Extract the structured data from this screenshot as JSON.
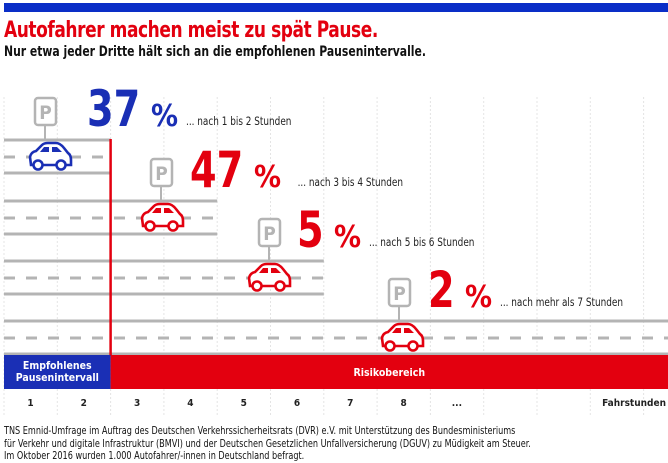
{
  "header": {
    "title": "Autofahrer machen meist zu spät Pause.",
    "subtitle": "Nur etwa jeder Dritte hält sich an die empfohlenen Pausenintervalle."
  },
  "colors": {
    "blue": "#1a2fb5",
    "red": "#e3000f",
    "gray": "#b4b4b4"
  },
  "icons": {
    "parking": "parking-sign-icon",
    "car": "car-icon"
  },
  "chart_data": {
    "type": "bar",
    "title": "Autofahrer machen meist zu spät Pause.",
    "categories": [
      "... nach 1 bis 2 Stunden",
      "... nach 3 bis 4 Stunden",
      "... nach 5 bis 6 Stunden",
      "... nach mehr als 7 Stunden"
    ],
    "values": [
      37,
      47,
      5,
      2
    ],
    "value_labels": [
      "37",
      "47",
      "5",
      "2"
    ],
    "unit": "%",
    "stop_hours": [
      2,
      4,
      6,
      8
    ],
    "xlabel": "Fahrstunden",
    "xticks": [
      "1",
      "2",
      "3",
      "4",
      "5",
      "6",
      "7",
      "8",
      "..."
    ],
    "zones": [
      {
        "label": "Empfohlenes Pausenintervall",
        "from": 0,
        "to": 2,
        "color": "#1a2fb5"
      },
      {
        "label": "Risikobereich",
        "from": 2,
        "to": 12,
        "color": "#e3000f"
      }
    ]
  },
  "footer": {
    "lines": [
      "TNS Emnid-Umfrage im Auftrag des Deutschen Verkehrssicherheitsrats (DVR) e.V. mit Unterstützung des Bundesministeriums",
      "für Verkehr und digitale Infrastruktur (BMVI) und der Deutschen Gesetzlichen Unfallversicherung (DGUV) zu Müdigkeit am Steuer.",
      "Im Oktober 2016 wurden 1.000 Autofahrer/-innen in Deutschland befragt."
    ]
  }
}
